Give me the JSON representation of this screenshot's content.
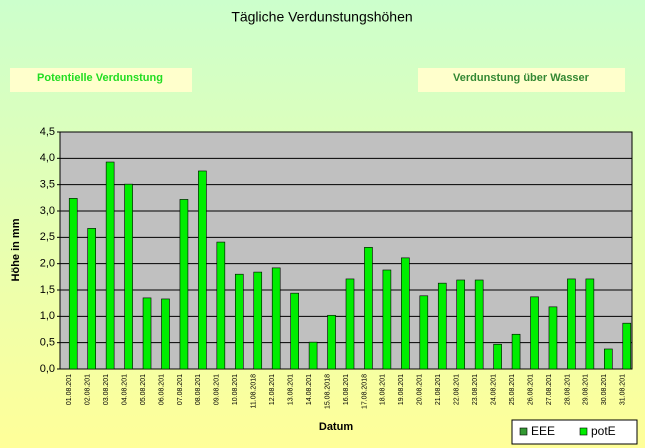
{
  "buttons": [
    "Potentielle Verdunstung",
    "Verdunstung über Wasser"
  ],
  "chart_data": {
    "type": "bar",
    "title": "Tägliche Verdunstungshöhen",
    "x_label": "Datum",
    "y_label": "Höhe in mm",
    "categories": [
      "01.08.201",
      "02.08.201",
      "03.08.201",
      "04.08.201",
      "05.08.201",
      "06.08.201",
      "07.08.201",
      "08.08.201",
      "09.08.201",
      "10.08.201",
      "11.08.2018",
      "12.08.201",
      "13.08.201",
      "14.08.201",
      "15.08.2018",
      "16.08.201",
      "17.08.2018",
      "18.08.201",
      "19.08.201",
      "20.08.201",
      "21.08.201",
      "22.08.201",
      "23.08.201",
      "24.08.201",
      "25.08.201",
      "26.08.201",
      "27.08.201",
      "28.08.201",
      "29.08.201",
      "30.08.201",
      "31.08.201"
    ],
    "series": [
      {
        "name": "EEE",
        "color": "#339933",
        "values": [
          null,
          null,
          null,
          null,
          null,
          null,
          null,
          null,
          null,
          null,
          null,
          null,
          null,
          null,
          null,
          null,
          null,
          null,
          null,
          null,
          null,
          null,
          null,
          null,
          null,
          null,
          null,
          null,
          null,
          null,
          null
        ]
      },
      {
        "name": "potE",
        "color": "#00ee00",
        "values": [
          3.24,
          2.67,
          3.93,
          3.51,
          1.35,
          1.33,
          3.22,
          3.76,
          2.41,
          1.8,
          1.84,
          1.92,
          1.44,
          0.51,
          1.02,
          1.71,
          2.31,
          1.88,
          2.11,
          1.39,
          1.63,
          1.69,
          1.69,
          0.47,
          0.66,
          1.37,
          1.18,
          1.71,
          1.71,
          0.38,
          0.87
        ]
      }
    ],
    "ylim": [
      0,
      4.5
    ],
    "yticks": [
      {
        "value": 0,
        "label": "0,0"
      },
      {
        "value": 0.5,
        "label": "0,5"
      },
      {
        "value": 1,
        "label": "1,0"
      },
      {
        "value": 1.5,
        "label": "1,5"
      },
      {
        "value": 2,
        "label": "2,0"
      },
      {
        "value": 2.5,
        "label": "2,5"
      },
      {
        "value": 3,
        "label": "3,0"
      },
      {
        "value": 3.5,
        "label": "3,5"
      },
      {
        "value": 4,
        "label": "4,0"
      },
      {
        "value": 4.5,
        "label": "4,5"
      }
    ],
    "grid": true,
    "legend": "bottom-right"
  }
}
